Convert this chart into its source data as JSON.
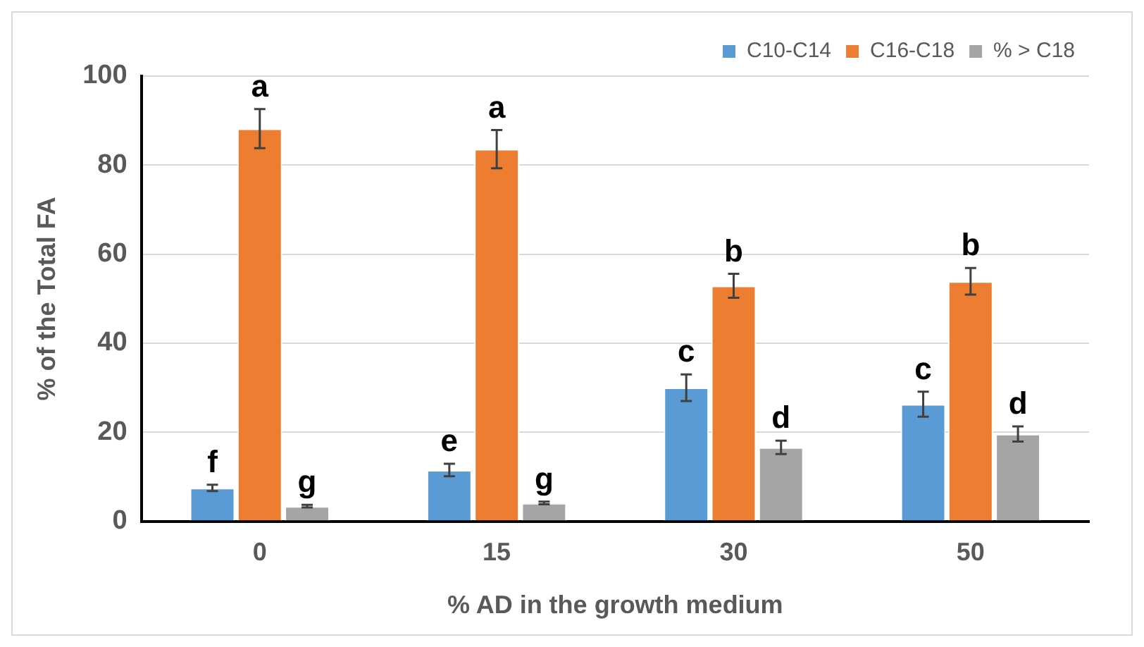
{
  "chart_data": {
    "type": "bar",
    "xlabel": "% AD in the growth medium",
    "ylabel": "% of the Total FA",
    "categories": [
      "0",
      "15",
      "30",
      "50"
    ],
    "series": [
      {
        "name": "C10-C14",
        "color": "#5b9bd5",
        "values": [
          7.5,
          11.5,
          30.0,
          26.3
        ],
        "errors": [
          0.7,
          1.4,
          3.0,
          2.8
        ],
        "value_labels": [
          "f",
          "e",
          "c",
          "c"
        ]
      },
      {
        "name": "C16-C18",
        "color": "#ed7d31",
        "values": [
          88.2,
          83.6,
          52.9,
          53.9
        ],
        "errors": [
          4.4,
          4.3,
          2.7,
          3.0
        ],
        "value_labels": [
          "a",
          "a",
          "b",
          "b"
        ]
      },
      {
        "name": "% > C18",
        "color": "#a5a5a5",
        "values": [
          3.4,
          4.1,
          16.6,
          19.6
        ],
        "errors": [
          0.3,
          0.3,
          1.5,
          1.7
        ],
        "value_labels": [
          "g",
          "g",
          "d",
          "d"
        ]
      }
    ],
    "ylim": [
      0,
      100
    ],
    "yticks": [
      0,
      20,
      40,
      60,
      80,
      100
    ],
    "grid": "y",
    "legend": "top right"
  }
}
